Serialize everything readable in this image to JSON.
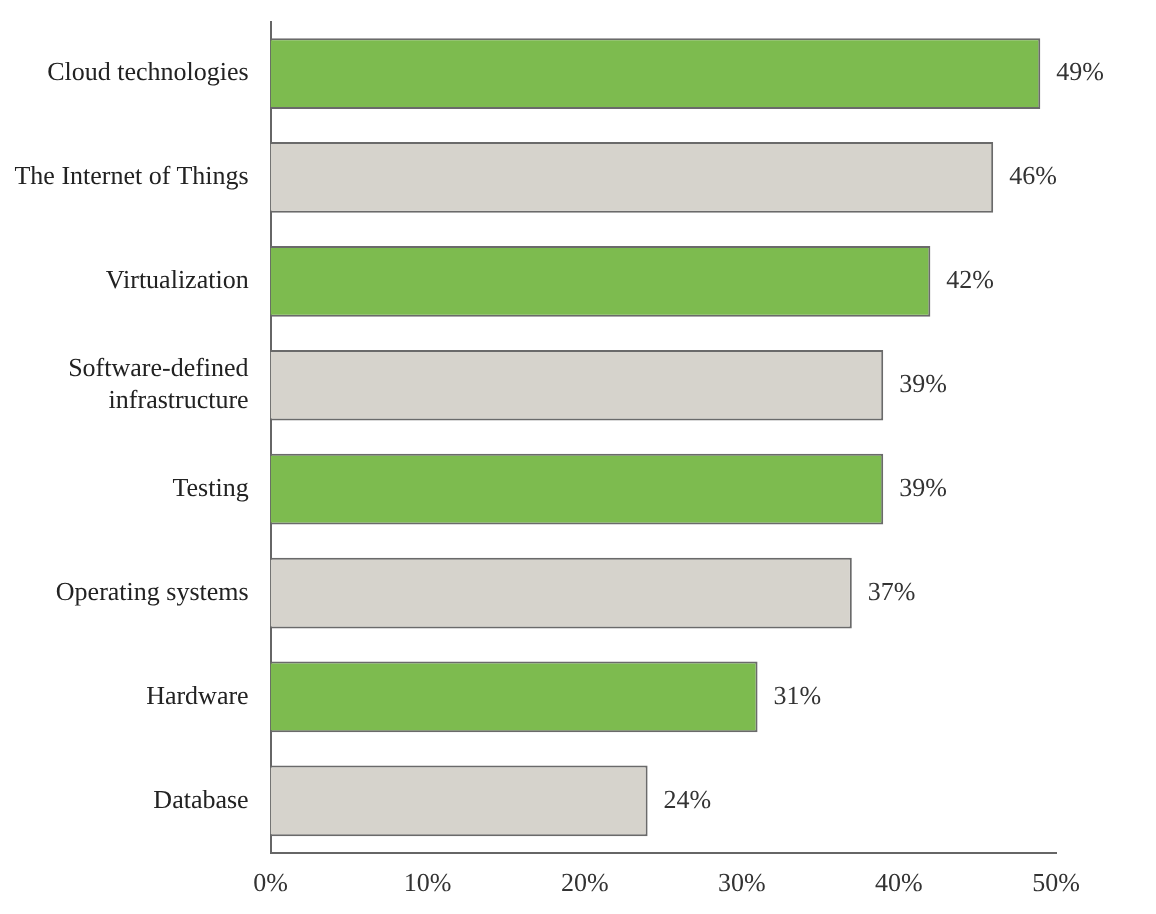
{
  "chart_data": {
    "type": "bar",
    "orientation": "horizontal",
    "categories": [
      "Cloud technologies",
      "The Internet of Things",
      "Virtualization",
      "Software-defined infrastructure",
      "Testing",
      "Operating systems",
      "Hardware",
      "Database"
    ],
    "values": [
      49,
      46,
      42,
      39,
      39,
      37,
      31,
      24
    ],
    "colors": [
      "#7dbb4f",
      "#d6d3cc",
      "#7dbb4f",
      "#d6d3cc",
      "#7dbb4f",
      "#d6d3cc",
      "#7dbb4f",
      "#d6d3cc"
    ],
    "value_labels": [
      "49%",
      "46%",
      "42%",
      "39%",
      "39%",
      "37%",
      "31%",
      "24%"
    ],
    "xlim": [
      0,
      50
    ],
    "xticks": [
      {
        "value": 0,
        "label": "0%"
      },
      {
        "value": 10,
        "label": "10%"
      },
      {
        "value": 20,
        "label": "20%"
      },
      {
        "value": 30,
        "label": "30%"
      },
      {
        "value": 40,
        "label": "40%"
      },
      {
        "value": 50,
        "label": "50%"
      }
    ],
    "grid": false,
    "legend": false
  }
}
